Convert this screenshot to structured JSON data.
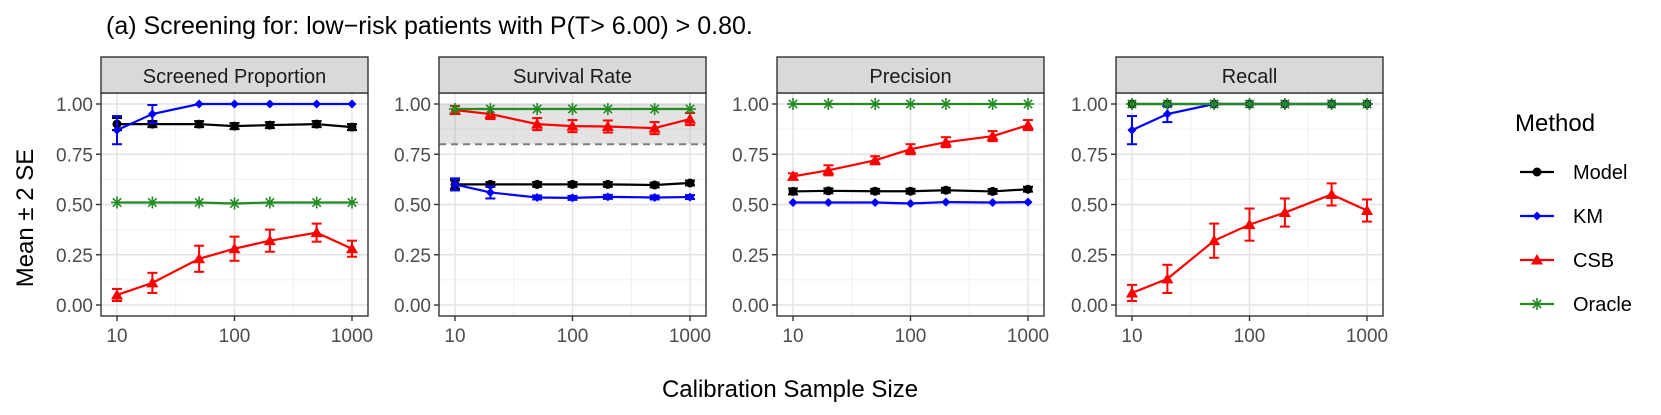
{
  "figure": {
    "title": "(a) Screening for: low−risk patients with P(T> 6.00) > 0.80.",
    "xlabel": "Calibration Sample Size",
    "ylabel": "Mean ± 2 SE"
  },
  "legend": {
    "title": "Method",
    "position": "right",
    "items": [
      {
        "name": "Model",
        "color": "#000000",
        "marker": "circle"
      },
      {
        "name": "KM",
        "color": "#0000ff",
        "marker": "diamond"
      },
      {
        "name": "CSB",
        "color": "#ff0000",
        "marker": "triangle"
      },
      {
        "name": "Oracle",
        "color": "#228b22",
        "marker": "star"
      }
    ]
  },
  "chart_data": [
    {
      "type": "line",
      "title": "Screened Proportion",
      "x": [
        10,
        20,
        50,
        100,
        200,
        500,
        1000
      ],
      "x_scale": "log10",
      "x_ticks": [
        "10",
        "100",
        "1000"
      ],
      "ylim": [
        0,
        1
      ],
      "y_ticks": [
        "0.00",
        "0.25",
        "0.50",
        "0.75",
        "1.00"
      ],
      "series": [
        {
          "name": "Model",
          "values": [
            0.9,
            0.9,
            0.9,
            0.89,
            0.895,
            0.9,
            0.885
          ],
          "se2": [
            0.03,
            0.015,
            0.015,
            0.015,
            0.015,
            0.015,
            0.015
          ]
        },
        {
          "name": "KM",
          "values": [
            0.87,
            0.95,
            1.0,
            1.0,
            1.0,
            1.0,
            1.0
          ],
          "se2": [
            0.07,
            0.045,
            0,
            0,
            0,
            0,
            0
          ]
        },
        {
          "name": "CSB",
          "values": [
            0.05,
            0.11,
            0.23,
            0.28,
            0.32,
            0.36,
            0.28
          ],
          "se2": [
            0.03,
            0.05,
            0.065,
            0.06,
            0.055,
            0.045,
            0.04
          ]
        },
        {
          "name": "Oracle",
          "values": [
            0.51,
            0.51,
            0.51,
            0.505,
            0.51,
            0.51,
            0.51
          ],
          "se2": [
            0,
            0,
            0,
            0,
            0,
            0,
            0
          ]
        }
      ]
    },
    {
      "type": "line",
      "title": "Survival Rate",
      "x": [
        10,
        20,
        50,
        100,
        200,
        500,
        1000
      ],
      "x_scale": "log10",
      "x_ticks": [
        "10",
        "100",
        "1000"
      ],
      "ylim": [
        0,
        1
      ],
      "y_ticks": [
        "0.00",
        "0.25",
        "0.50",
        "0.75",
        "1.00"
      ],
      "shaded_band": [
        0.8,
        1.0
      ],
      "reference_line": 0.8,
      "series": [
        {
          "name": "Model",
          "values": [
            0.6,
            0.6,
            0.6,
            0.6,
            0.6,
            0.597,
            0.607
          ],
          "se2": [
            0.02,
            0.012,
            0.012,
            0.012,
            0.012,
            0.012,
            0.012
          ]
        },
        {
          "name": "KM",
          "values": [
            0.6,
            0.56,
            0.535,
            0.533,
            0.538,
            0.535,
            0.537
          ],
          "se2": [
            0.03,
            0.03,
            0.01,
            0.01,
            0.01,
            0.01,
            0.01
          ]
        },
        {
          "name": "CSB",
          "values": [
            0.97,
            0.95,
            0.9,
            0.89,
            0.888,
            0.88,
            0.925
          ],
          "se2": [
            0.02,
            0.025,
            0.03,
            0.03,
            0.03,
            0.03,
            0.03
          ]
        },
        {
          "name": "Oracle",
          "values": [
            0.975,
            0.975,
            0.975,
            0.975,
            0.975,
            0.975,
            0.975
          ],
          "se2": [
            0,
            0,
            0,
            0,
            0,
            0,
            0
          ]
        }
      ]
    },
    {
      "type": "line",
      "title": "Precision",
      "x": [
        10,
        20,
        50,
        100,
        200,
        500,
        1000
      ],
      "x_scale": "log10",
      "x_ticks": [
        "10",
        "100",
        "1000"
      ],
      "ylim": [
        0,
        1
      ],
      "y_ticks": [
        "0.00",
        "0.25",
        "0.50",
        "0.75",
        "1.00"
      ],
      "series": [
        {
          "name": "Model",
          "values": [
            0.565,
            0.568,
            0.566,
            0.566,
            0.571,
            0.565,
            0.576
          ],
          "se2": [
            0.015,
            0.012,
            0.012,
            0.012,
            0.012,
            0.012,
            0.012
          ]
        },
        {
          "name": "KM",
          "values": [
            0.51,
            0.51,
            0.51,
            0.505,
            0.512,
            0.51,
            0.512
          ],
          "se2": [
            0,
            0,
            0,
            0,
            0,
            0,
            0
          ]
        },
        {
          "name": "CSB",
          "values": [
            0.64,
            0.67,
            0.72,
            0.775,
            0.81,
            0.84,
            0.895
          ],
          "se2": [
            0.015,
            0.025,
            0.02,
            0.025,
            0.025,
            0.025,
            0.025
          ]
        },
        {
          "name": "Oracle",
          "values": [
            1.0,
            1.0,
            1.0,
            1.0,
            1.0,
            1.0,
            1.0
          ],
          "se2": [
            0,
            0,
            0,
            0,
            0,
            0,
            0
          ]
        }
      ]
    },
    {
      "type": "line",
      "title": "Recall",
      "x": [
        10,
        20,
        50,
        100,
        200,
        500,
        1000
      ],
      "x_scale": "log10",
      "x_ticks": [
        "10",
        "100",
        "1000"
      ],
      "ylim": [
        0,
        1
      ],
      "y_ticks": [
        "0.00",
        "0.25",
        "0.50",
        "0.75",
        "1.00"
      ],
      "series": [
        {
          "name": "Model",
          "values": [
            1.0,
            1.0,
            1.0,
            1.0,
            1.0,
            1.0,
            1.0
          ],
          "se2": [
            0,
            0,
            0,
            0,
            0,
            0,
            0
          ]
        },
        {
          "name": "KM",
          "values": [
            0.87,
            0.95,
            1.0,
            1.0,
            1.0,
            1.0,
            1.0
          ],
          "se2": [
            0.07,
            0.04,
            0,
            0,
            0,
            0,
            0
          ]
        },
        {
          "name": "CSB",
          "values": [
            0.06,
            0.13,
            0.32,
            0.4,
            0.46,
            0.55,
            0.47
          ],
          "se2": [
            0.04,
            0.07,
            0.085,
            0.08,
            0.07,
            0.055,
            0.055
          ]
        },
        {
          "name": "Oracle",
          "values": [
            1.0,
            1.0,
            1.0,
            1.0,
            1.0,
            1.0,
            1.0
          ],
          "se2": [
            0,
            0,
            0,
            0,
            0,
            0,
            0
          ]
        }
      ]
    }
  ]
}
